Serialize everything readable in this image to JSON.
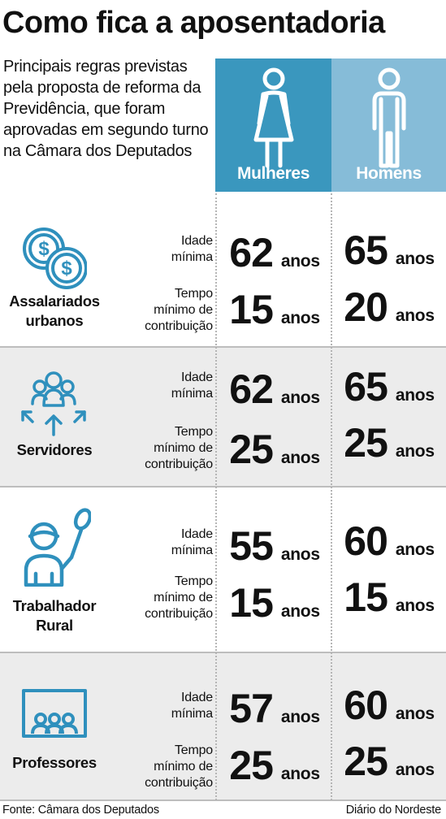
{
  "title": "Como fica a aposentadoria",
  "subtitle": "Principais regras previstas pela proposta de reforma da Previdência, que foram aprovadas em segundo turno na Câmara dos Deputados",
  "colors": {
    "women": "#3a97be",
    "men": "#86bcd8",
    "icon": "#2f90bd",
    "band": "#ececec"
  },
  "columns": {
    "women": {
      "label": "Mulheres",
      "icon": "woman-icon"
    },
    "men": {
      "label": "Homens",
      "icon": "man-icon"
    }
  },
  "unit": "anos",
  "rows": {
    "age_label": "Idade\nmínima",
    "contrib_label": "Tempo\nmínimo de\ncontribuição"
  },
  "categories": [
    {
      "name": "Assalariados\nurbanos",
      "icon": "money-coins-icon",
      "age": {
        "women": "62",
        "men": "65"
      },
      "contribution": {
        "women": "15",
        "men": "20"
      }
    },
    {
      "name": "Servidores",
      "icon": "group-arrows-icon",
      "age": {
        "women": "62",
        "men": "65"
      },
      "contribution": {
        "women": "25",
        "men": "25"
      }
    },
    {
      "name": "Trabalhador\nRural",
      "icon": "farmer-icon",
      "age": {
        "women": "55",
        "men": "60"
      },
      "contribution": {
        "women": "15",
        "men": "15"
      }
    },
    {
      "name": "Professores",
      "icon": "classroom-icon",
      "age": {
        "women": "57",
        "men": "60"
      },
      "contribution": {
        "women": "25",
        "men": "25"
      }
    }
  ],
  "footer": {
    "source": "Fonte: Câmara dos Deputados",
    "credit": "Diário do Nordeste"
  }
}
